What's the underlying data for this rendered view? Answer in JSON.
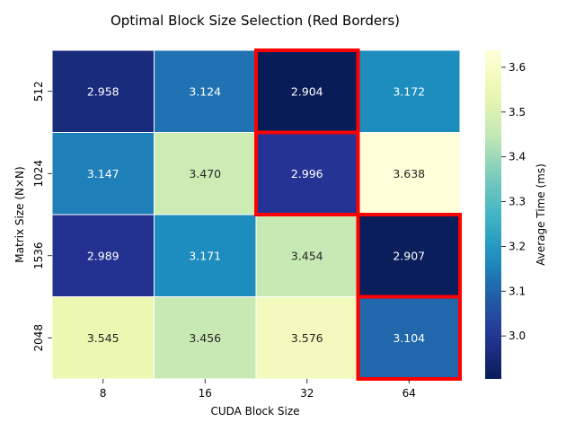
{
  "chart_data": {
    "type": "heatmap",
    "title": "Optimal Block Size Selection (Red Borders)",
    "xlabel": "CUDA Block Size",
    "ylabel": "Matrix Size (N×N)",
    "x_categories": [
      "8",
      "16",
      "32",
      "64"
    ],
    "y_categories": [
      "512",
      "1024",
      "1536",
      "2048"
    ],
    "values": [
      [
        2.958,
        3.124,
        2.904,
        3.172
      ],
      [
        3.147,
        3.47,
        2.996,
        3.638
      ],
      [
        2.989,
        3.171,
        3.454,
        2.907
      ],
      [
        3.545,
        3.456,
        3.576,
        3.104
      ]
    ],
    "value_labels": [
      [
        "2.958",
        "3.124",
        "2.904",
        "3.172"
      ],
      [
        "3.147",
        "3.470",
        "2.996",
        "3.638"
      ],
      [
        "2.989",
        "3.171",
        "3.454",
        "2.907"
      ],
      [
        "3.545",
        "3.456",
        "3.576",
        "3.104"
      ]
    ],
    "highlighted_cells": [
      {
        "row": 0,
        "col": 2
      },
      {
        "row": 1,
        "col": 2
      },
      {
        "row": 2,
        "col": 3
      },
      {
        "row": 3,
        "col": 3
      }
    ],
    "highlight_color": "#ff0000",
    "colormap": "YlGnBu_r",
    "colorbar": {
      "label": "Average Time (ms)",
      "ticks": [
        "3.0",
        "3.1",
        "3.2",
        "3.3",
        "3.4",
        "3.5",
        "3.6"
      ],
      "tick_values": [
        3.0,
        3.1,
        3.2,
        3.3,
        3.4,
        3.5,
        3.6
      ],
      "range": [
        2.904,
        3.638
      ]
    }
  }
}
